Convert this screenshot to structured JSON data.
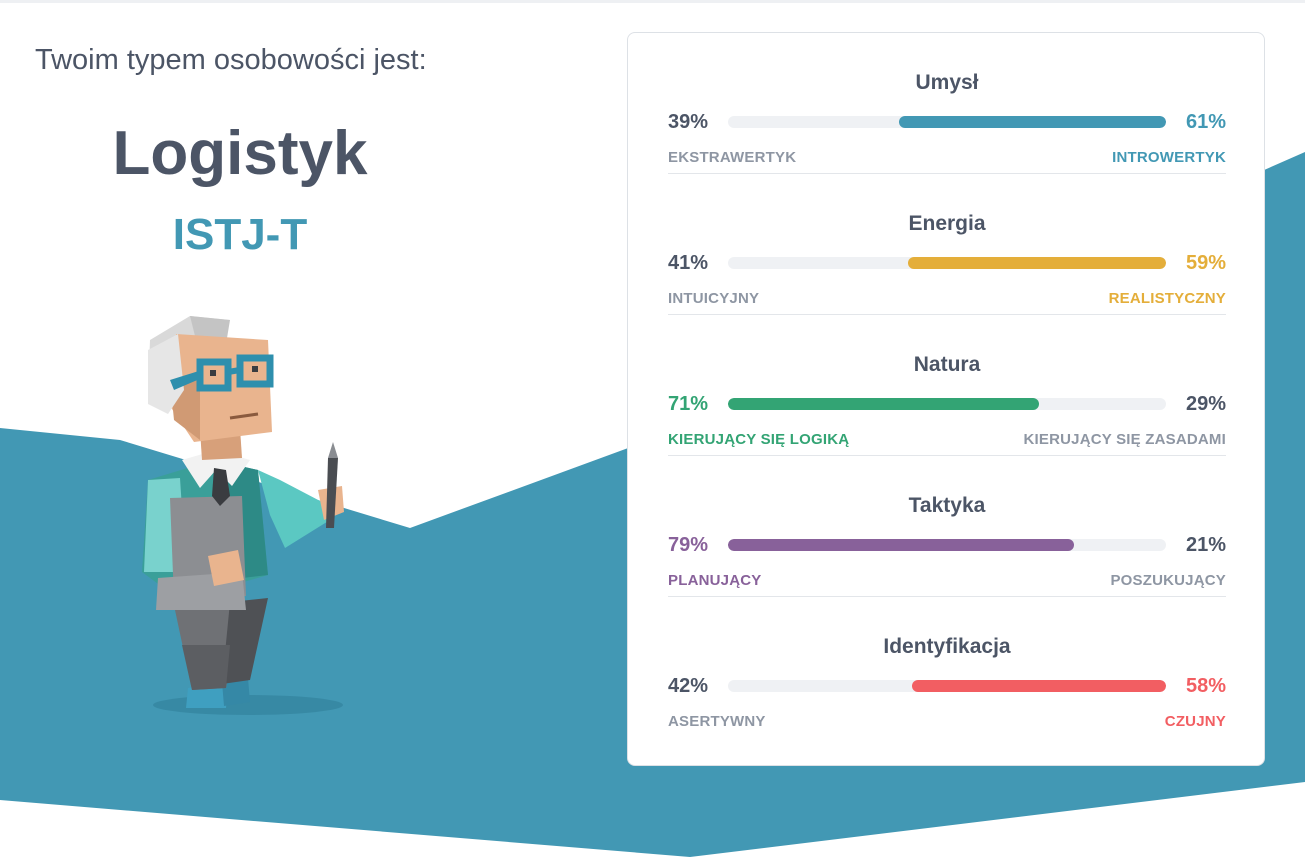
{
  "intro": "Twoim typem osobowości jest:",
  "type_name": "Logistyk",
  "type_code": "ISTJ-T",
  "colors": {
    "code": "#4298b4",
    "background_wave": "#4298b4"
  },
  "avatar_icon": "logistician-character-illustration",
  "traits": [
    {
      "title": "Umysł",
      "left_pct": "39%",
      "right_pct": "61%",
      "left_label": "EKSTRAWERTYK",
      "right_label": "INTROWERTYK",
      "value": 0.61,
      "dominant": "right",
      "color": "#4298b4"
    },
    {
      "title": "Energia",
      "left_pct": "41%",
      "right_pct": "59%",
      "left_label": "INTUICYJNY",
      "right_label": "REALISTYCZNY",
      "value": 0.59,
      "dominant": "right",
      "color": "#e4ae3a"
    },
    {
      "title": "Natura",
      "left_pct": "71%",
      "right_pct": "29%",
      "left_label": "KIERUJĄCY SIĘ LOGIKĄ",
      "right_label": "KIERUJĄCY SIĘ ZASADAMI",
      "value": 0.71,
      "dominant": "left",
      "color": "#33a474"
    },
    {
      "title": "Taktyka",
      "left_pct": "79%",
      "right_pct": "21%",
      "left_label": "PLANUJĄCY",
      "right_label": "POSZUKUJĄCY",
      "value": 0.79,
      "dominant": "left",
      "color": "#88619a"
    },
    {
      "title": "Identyfikacja",
      "left_pct": "42%",
      "right_pct": "58%",
      "left_label": "ASERTYWNY",
      "right_label": "CZUJNY",
      "value": 0.58,
      "dominant": "right",
      "color": "#f25e62"
    }
  ]
}
